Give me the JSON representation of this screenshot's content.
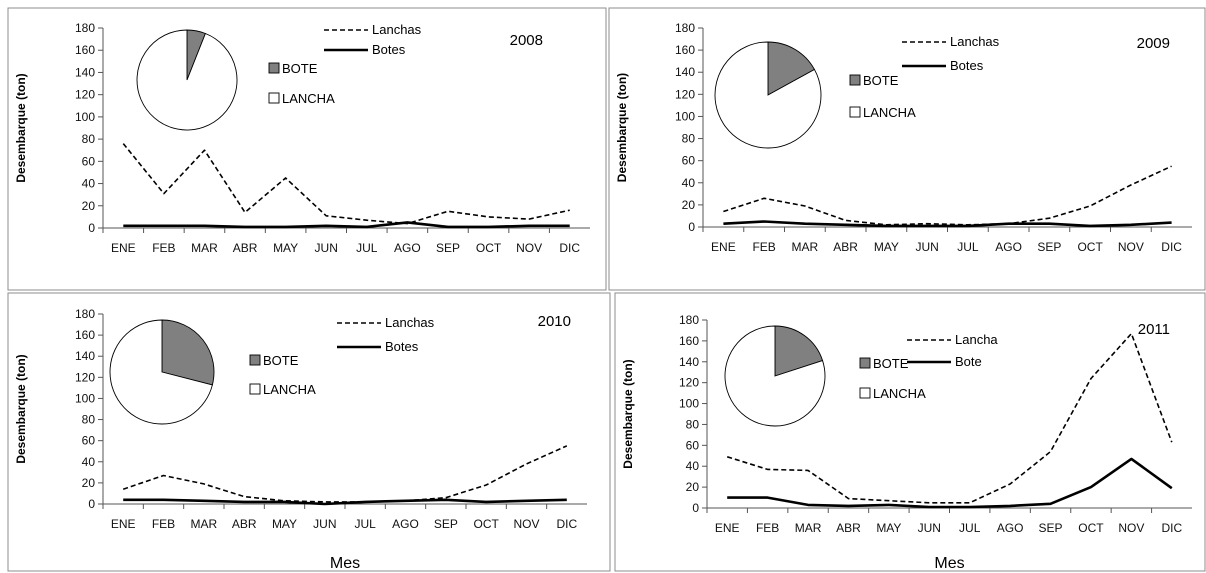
{
  "colors": {
    "frame": "#8c8c8c",
    "line": "#000000",
    "pie_bote": "#808080",
    "pie_lancha": "#ffffff"
  },
  "chart_data": [
    {
      "type": "line",
      "title": "2008",
      "ylabel": "Desembarque (ton)",
      "xlabel": "",
      "ylim": [
        0,
        180
      ],
      "yticks": [
        0,
        20,
        40,
        60,
        80,
        100,
        120,
        140,
        160,
        180
      ],
      "categories": [
        "ENE",
        "FEB",
        "MAR",
        "ABR",
        "MAY",
        "JUN",
        "JUL",
        "AGO",
        "SEP",
        "OCT",
        "NOV",
        "DIC"
      ],
      "series": [
        {
          "name": "Lanchas",
          "style": "dashed",
          "values": [
            76,
            31,
            70,
            14,
            45,
            11,
            7,
            4,
            15,
            10,
            8,
            16
          ]
        },
        {
          "name": "Botes",
          "style": "solid",
          "values": [
            2,
            2,
            2,
            1,
            1,
            2,
            1,
            5,
            1,
            1,
            2,
            2
          ]
        }
      ],
      "pie": {
        "labels": [
          "BOTE",
          "LANCHA"
        ],
        "values": [
          6,
          94
        ]
      }
    },
    {
      "type": "line",
      "title": "2009",
      "ylabel": "Desembarque (ton)",
      "xlabel": "",
      "ylim": [
        0,
        180
      ],
      "yticks": [
        0,
        20,
        40,
        60,
        80,
        100,
        120,
        140,
        160,
        180
      ],
      "categories": [
        "ENE",
        "FEB",
        "MAR",
        "ABR",
        "MAY",
        "JUN",
        "JUL",
        "AGO",
        "SEP",
        "OCT",
        "NOV",
        "DIC"
      ],
      "series": [
        {
          "name": "Lanchas",
          "style": "dashed",
          "values": [
            14,
            26,
            19,
            6,
            2,
            3,
            2,
            3,
            8,
            19,
            38,
            55
          ]
        },
        {
          "name": "Botes",
          "style": "solid",
          "values": [
            3,
            5,
            3,
            2,
            1,
            1,
            1,
            3,
            3,
            1,
            2,
            4
          ]
        }
      ],
      "pie": {
        "labels": [
          "BOTE",
          "LANCHA"
        ],
        "values": [
          17,
          83
        ]
      }
    },
    {
      "type": "line",
      "title": "2010",
      "ylabel": "Desembarque (ton)",
      "xlabel": "Mes",
      "ylim": [
        0,
        180
      ],
      "yticks": [
        0,
        20,
        40,
        60,
        80,
        100,
        120,
        140,
        160,
        180
      ],
      "categories": [
        "ENE",
        "FEB",
        "MAR",
        "ABR",
        "MAY",
        "JUN",
        "JUL",
        "AGO",
        "SEP",
        "OCT",
        "NOV",
        "DIC"
      ],
      "series": [
        {
          "name": "Lanchas",
          "style": "dashed",
          "values": [
            14,
            27,
            19,
            7,
            3,
            2,
            2,
            3,
            6,
            18,
            38,
            55
          ]
        },
        {
          "name": "Botes",
          "style": "solid",
          "values": [
            4,
            4,
            3,
            2,
            2,
            0,
            2,
            3,
            4,
            2,
            3,
            4
          ]
        }
      ],
      "pie": {
        "labels": [
          "BOTE",
          "LANCHA"
        ],
        "values": [
          29,
          71
        ]
      }
    },
    {
      "type": "line",
      "title": "2011",
      "ylabel": "Desembarque (ton)",
      "xlabel": "Mes",
      "ylim": [
        0,
        180
      ],
      "yticks": [
        0,
        20,
        40,
        60,
        80,
        100,
        120,
        140,
        160,
        180
      ],
      "categories": [
        "ENE",
        "FEB",
        "MAR",
        "ABR",
        "MAY",
        "JUN",
        "JUL",
        "AGO",
        "SEP",
        "OCT",
        "NOV",
        "DIC"
      ],
      "series": [
        {
          "name": "Lancha",
          "style": "dashed",
          "values": [
            49,
            37,
            36,
            9,
            7,
            5,
            5,
            23,
            54,
            124,
            167,
            63
          ]
        },
        {
          "name": "Bote",
          "style": "solid",
          "values": [
            10,
            10,
            3,
            2,
            3,
            1,
            1,
            2,
            4,
            20,
            47,
            19
          ]
        }
      ],
      "pie": {
        "labels": [
          "BOTE",
          "LANCHA"
        ],
        "values": [
          20,
          80
        ]
      }
    }
  ]
}
